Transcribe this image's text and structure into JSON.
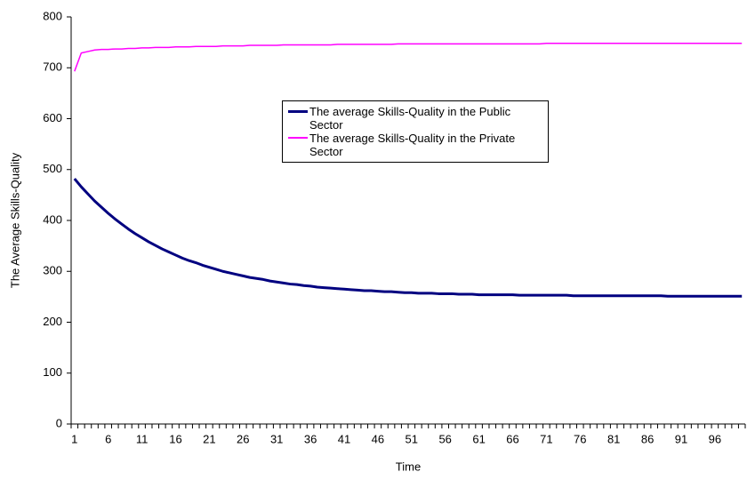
{
  "chart_data": {
    "type": "line",
    "xlabel": "Time",
    "ylabel": "The Average Skills-Quality",
    "categories": [
      "1",
      null,
      null,
      null,
      null,
      "6",
      null,
      null,
      null,
      null,
      "11",
      null,
      null,
      null,
      null,
      "16",
      null,
      null,
      null,
      null,
      "21",
      null,
      null,
      null,
      null,
      "26",
      null,
      null,
      null,
      null,
      "31",
      null,
      null,
      null,
      null,
      "36",
      null,
      null,
      null,
      null,
      "41",
      null,
      null,
      null,
      null,
      "46",
      null,
      null,
      null,
      null,
      "51",
      null,
      null,
      null,
      null,
      "56",
      null,
      null,
      null,
      null,
      "61",
      null,
      null,
      null,
      null,
      "66",
      null,
      null,
      null,
      null,
      "71",
      null,
      null,
      null,
      null,
      "76",
      null,
      null,
      null,
      null,
      "81",
      null,
      null,
      null,
      null,
      "86",
      null,
      null,
      null,
      null,
      "91",
      null,
      null,
      null,
      null,
      "96",
      null,
      null,
      null,
      null
    ],
    "series": [
      {
        "name": "The average Skills-Quality in the Public Sector",
        "color": "#000080",
        "values": [
          482,
          466,
          452,
          438,
          426,
          414,
          403,
          393,
          383,
          374,
          366,
          358,
          351,
          344,
          338,
          332,
          326,
          321,
          317,
          312,
          308,
          304,
          300,
          297,
          294,
          291,
          288,
          286,
          284,
          281,
          279,
          277,
          275,
          274,
          272,
          271,
          269,
          268,
          267,
          266,
          265,
          264,
          263,
          262,
          262,
          261,
          260,
          260,
          259,
          258,
          258,
          257,
          257,
          257,
          256,
          256,
          256,
          255,
          255,
          255,
          254,
          254,
          254,
          254,
          254,
          254,
          253,
          253,
          253,
          253,
          253,
          253,
          253,
          253,
          252,
          252,
          252,
          252,
          252,
          252,
          252,
          252,
          252,
          252,
          252,
          252,
          252,
          252,
          251,
          251,
          251,
          251,
          251,
          251,
          251,
          251,
          251,
          251,
          251,
          251
        ]
      },
      {
        "name": "The average Skills-Quality in the Private Sector",
        "color": "#ff00ff",
        "values": [
          693,
          729,
          732,
          735,
          736,
          736,
          737,
          737,
          738,
          738,
          739,
          739,
          740,
          740,
          740,
          741,
          741,
          741,
          742,
          742,
          742,
          742,
          743,
          743,
          743,
          743,
          744,
          744,
          744,
          744,
          744,
          745,
          745,
          745,
          745,
          745,
          745,
          745,
          745,
          746,
          746,
          746,
          746,
          746,
          746,
          746,
          746,
          746,
          747,
          747,
          747,
          747,
          747,
          747,
          747,
          747,
          747,
          747,
          747,
          747,
          747,
          747,
          747,
          747,
          747,
          747,
          747,
          747,
          747,
          747,
          748,
          748,
          748,
          748,
          748,
          748,
          748,
          748,
          748,
          748,
          748,
          748,
          748,
          748,
          748,
          748,
          748,
          748,
          748,
          748,
          748,
          748,
          748,
          748,
          748,
          748,
          748,
          748,
          748,
          748
        ]
      }
    ],
    "ylim": [
      0,
      800
    ],
    "yticks": [
      0,
      100,
      200,
      300,
      400,
      500,
      600,
      700,
      800
    ],
    "grid": false,
    "legend": "upper center"
  }
}
